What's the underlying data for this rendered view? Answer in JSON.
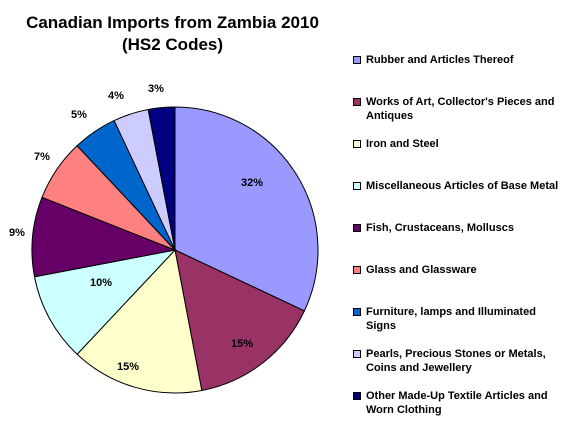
{
  "chart_data": {
    "type": "pie",
    "title": [
      "Canadian Imports from Zambia 2010",
      "(HS2 Codes)"
    ],
    "slices": [
      {
        "label": "Rubber and Articles Thereof",
        "value": 32,
        "data_label": "32%",
        "color": "#9999ff"
      },
      {
        "label": "Works of Art, Collector's Pieces and Antiques",
        "value": 15,
        "data_label": "15%",
        "color": "#993366"
      },
      {
        "label": "Iron and Steel",
        "value": 15,
        "data_label": "15%",
        "color": "#ffffcc"
      },
      {
        "label": "Miscellaneous Articles of Base Metal",
        "value": 10,
        "data_label": "10%",
        "color": "#ccffff"
      },
      {
        "label": "Fish, Crustaceans, Molluscs",
        "value": 9,
        "data_label": "9%",
        "color": "#660066"
      },
      {
        "label": "Glass and Glassware",
        "value": 7,
        "data_label": "7%",
        "color": "#ff8080"
      },
      {
        "label": "Furniture, lamps and Illuminated Signs",
        "value": 5,
        "data_label": "5%",
        "color": "#0066cc"
      },
      {
        "label": "Pearls, Precious Stones or Metals, Coins and Jewellery",
        "value": 4,
        "data_label": "4%",
        "color": "#ccccff"
      },
      {
        "label": "Other Made-Up Textile Articles and Worn Clothing",
        "value": 3,
        "data_label": "3%",
        "color": "#000080"
      }
    ],
    "start": "12 o'clock",
    "direction": "clockwise",
    "legend_position": "right"
  }
}
